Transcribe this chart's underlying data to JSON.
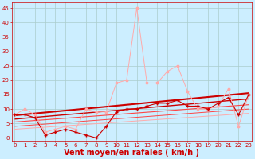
{
  "background_color": "#cceeff",
  "grid_color": "#aacccc",
  "xlabel": "Vent moyen/en rafales ( km/h )",
  "xlabel_color": "#cc0000",
  "xlabel_fontsize": 7,
  "yticks": [
    0,
    5,
    10,
    15,
    20,
    25,
    30,
    35,
    40,
    45
  ],
  "xticks": [
    0,
    1,
    2,
    3,
    4,
    5,
    6,
    7,
    8,
    9,
    10,
    11,
    12,
    13,
    14,
    15,
    16,
    17,
    18,
    19,
    20,
    21,
    22,
    23
  ],
  "xlim": [
    -0.3,
    23.3
  ],
  "ylim": [
    -1,
    47
  ],
  "tick_color": "#cc0000",
  "tick_fontsize": 5,
  "line_mean_x": [
    0,
    1,
    2,
    3,
    4,
    5,
    6,
    7,
    8,
    9,
    10,
    11,
    12,
    13,
    14,
    15,
    16,
    17,
    18,
    19,
    20,
    21,
    22,
    23
  ],
  "line_mean_y": [
    8,
    8,
    7,
    1,
    2,
    3,
    2,
    1,
    0,
    4,
    9,
    10,
    10,
    11,
    12,
    12,
    13,
    11,
    11,
    10,
    12,
    14,
    8,
    15
  ],
  "line_mean_color": "#cc0000",
  "line_mean_marker": "+",
  "line_mean_ms": 3.0,
  "line_mean_lw": 0.8,
  "line_gust_x": [
    0,
    1,
    2,
    3,
    4,
    5,
    6,
    7,
    8,
    9,
    10,
    11,
    12,
    13,
    14,
    15,
    16,
    17,
    18,
    19,
    20,
    21,
    22,
    23
  ],
  "line_gust_y": [
    8,
    10,
    8,
    2,
    3,
    4,
    3,
    10,
    9,
    9,
    19,
    20,
    45,
    19,
    19,
    23,
    25,
    16,
    10,
    10,
    11,
    17,
    4,
    15
  ],
  "line_gust_color": "#ffaaaa",
  "line_gust_marker": "o",
  "line_gust_ms": 1.8,
  "line_gust_lw": 0.7,
  "trends": [
    {
      "x": [
        0,
        23
      ],
      "y": [
        7.8,
        15.5
      ],
      "color": "#cc0000",
      "lw": 1.5
    },
    {
      "x": [
        0,
        23
      ],
      "y": [
        6.5,
        13.5
      ],
      "color": "#cc0000",
      "lw": 1.0
    },
    {
      "x": [
        0,
        23
      ],
      "y": [
        5.5,
        11.5
      ],
      "color": "#ff4444",
      "lw": 0.8
    },
    {
      "x": [
        0,
        23
      ],
      "y": [
        4.0,
        10.0
      ],
      "color": "#ff4444",
      "lw": 0.7
    },
    {
      "x": [
        0,
        23
      ],
      "y": [
        3.0,
        8.5
      ],
      "color": "#ffaaaa",
      "lw": 0.7
    }
  ]
}
